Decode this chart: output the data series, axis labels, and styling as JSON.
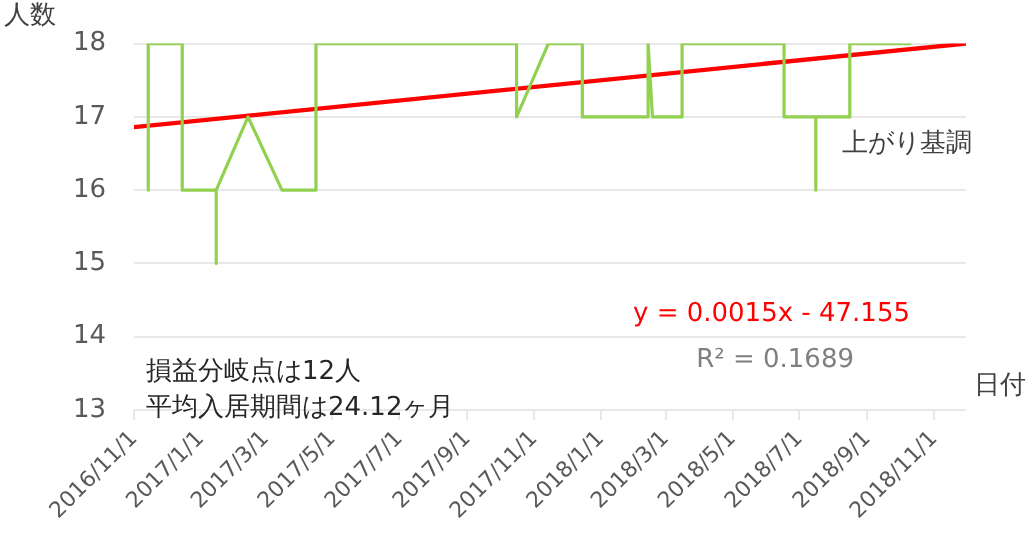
{
  "chart_data": {
    "type": "line",
    "ylabel": "人数",
    "xlabel": "日付",
    "xlim": [
      "2016-11-01",
      "2018-11-30"
    ],
    "xticks": [
      {
        "value": "2016-11-01",
        "label": "2016/11/1"
      },
      {
        "value": "2017-01-01",
        "label": "2017/1/1"
      },
      {
        "value": "2017-03-01",
        "label": "2017/3/1"
      },
      {
        "value": "2017-05-01",
        "label": "2017/5/1"
      },
      {
        "value": "2017-07-01",
        "label": "2017/7/1"
      },
      {
        "value": "2017-09-01",
        "label": "2017/9/1"
      },
      {
        "value": "2017-11-01",
        "label": "2017/11/1"
      },
      {
        "value": "2018-01-01",
        "label": "2018/1/1"
      },
      {
        "value": "2018-03-01",
        "label": "2018/3/1"
      },
      {
        "value": "2018-05-01",
        "label": "2018/5/1"
      },
      {
        "value": "2018-07-01",
        "label": "2018/7/1"
      },
      {
        "value": "2018-09-01",
        "label": "2018/9/1"
      },
      {
        "value": "2018-11-01",
        "label": "2018/11/1"
      }
    ],
    "ylim": [
      13,
      18
    ],
    "yticks": [
      13,
      14,
      15,
      16,
      17,
      18
    ],
    "grid": "y",
    "legend": false,
    "marker": "none",
    "line_style": "solid",
    "series": [
      {
        "type": "line",
        "color": "#92d050",
        "x": [
          "2016-11-14",
          "2016-11-14",
          "2016-12-15",
          "2016-12-15",
          "2017-01-15",
          "2017-01-15",
          "2017-01-15",
          "2017-02-13",
          "2017-03-16",
          "2017-04-16",
          "2017-04-16",
          "2017-10-16",
          "2017-10-16",
          "2017-11-14",
          "2017-12-15",
          "2017-12-15",
          "2018-02-13",
          "2018-02-13",
          "2018-02-17",
          "2018-03-16",
          "2018-03-16",
          "2018-06-17",
          "2018-06-17",
          "2018-07-16",
          "2018-07-16",
          "2018-07-16",
          "2018-08-16",
          "2018-08-16",
          "2018-10-10"
        ],
        "values": [
          16,
          18,
          18,
          16,
          16,
          15,
          16,
          17,
          16,
          16,
          18,
          18,
          17,
          18,
          18,
          17,
          17,
          18,
          17,
          17,
          18,
          18,
          17,
          17,
          16,
          17,
          17,
          18,
          18
        ]
      },
      {
        "type": "line",
        "color": "#ff0000",
        "x": [
          "2016-11-01",
          "2018-11-30"
        ],
        "values": [
          16.86,
          18.0
        ]
      }
    ],
    "annotations": [
      "上がり基調",
      "y = 0.0015x - 47.155",
      "R² = 0.1689",
      "損益分岐点は12人",
      "平均入居期間は24.12ヶ月"
    ]
  }
}
